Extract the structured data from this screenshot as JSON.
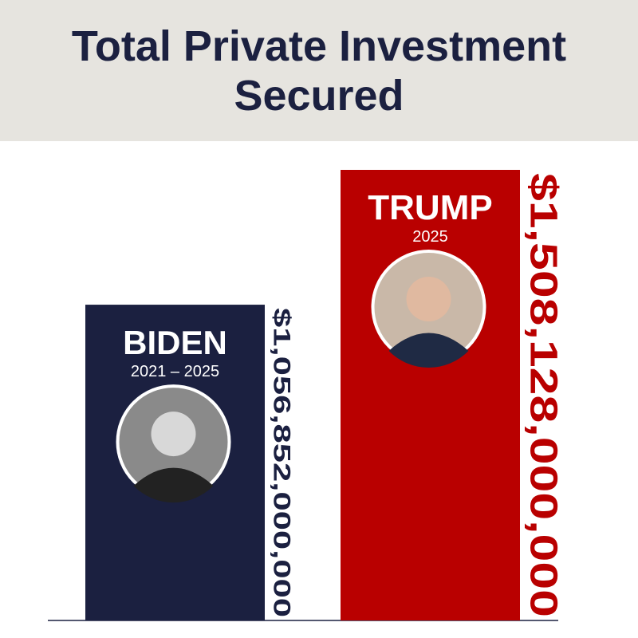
{
  "chart_data": {
    "type": "bar",
    "title": "Total Private Investment Secured",
    "categories": [
      "BIDEN",
      "TRUMP"
    ],
    "periods": [
      "2021 – 2025",
      "2025"
    ],
    "values": [
      1056852000000,
      1508128000000
    ],
    "value_labels": [
      "$1,056,852,000,000",
      "$1,508,128,000,000"
    ],
    "colors": [
      "#1b2040",
      "#b90000"
    ]
  }
}
